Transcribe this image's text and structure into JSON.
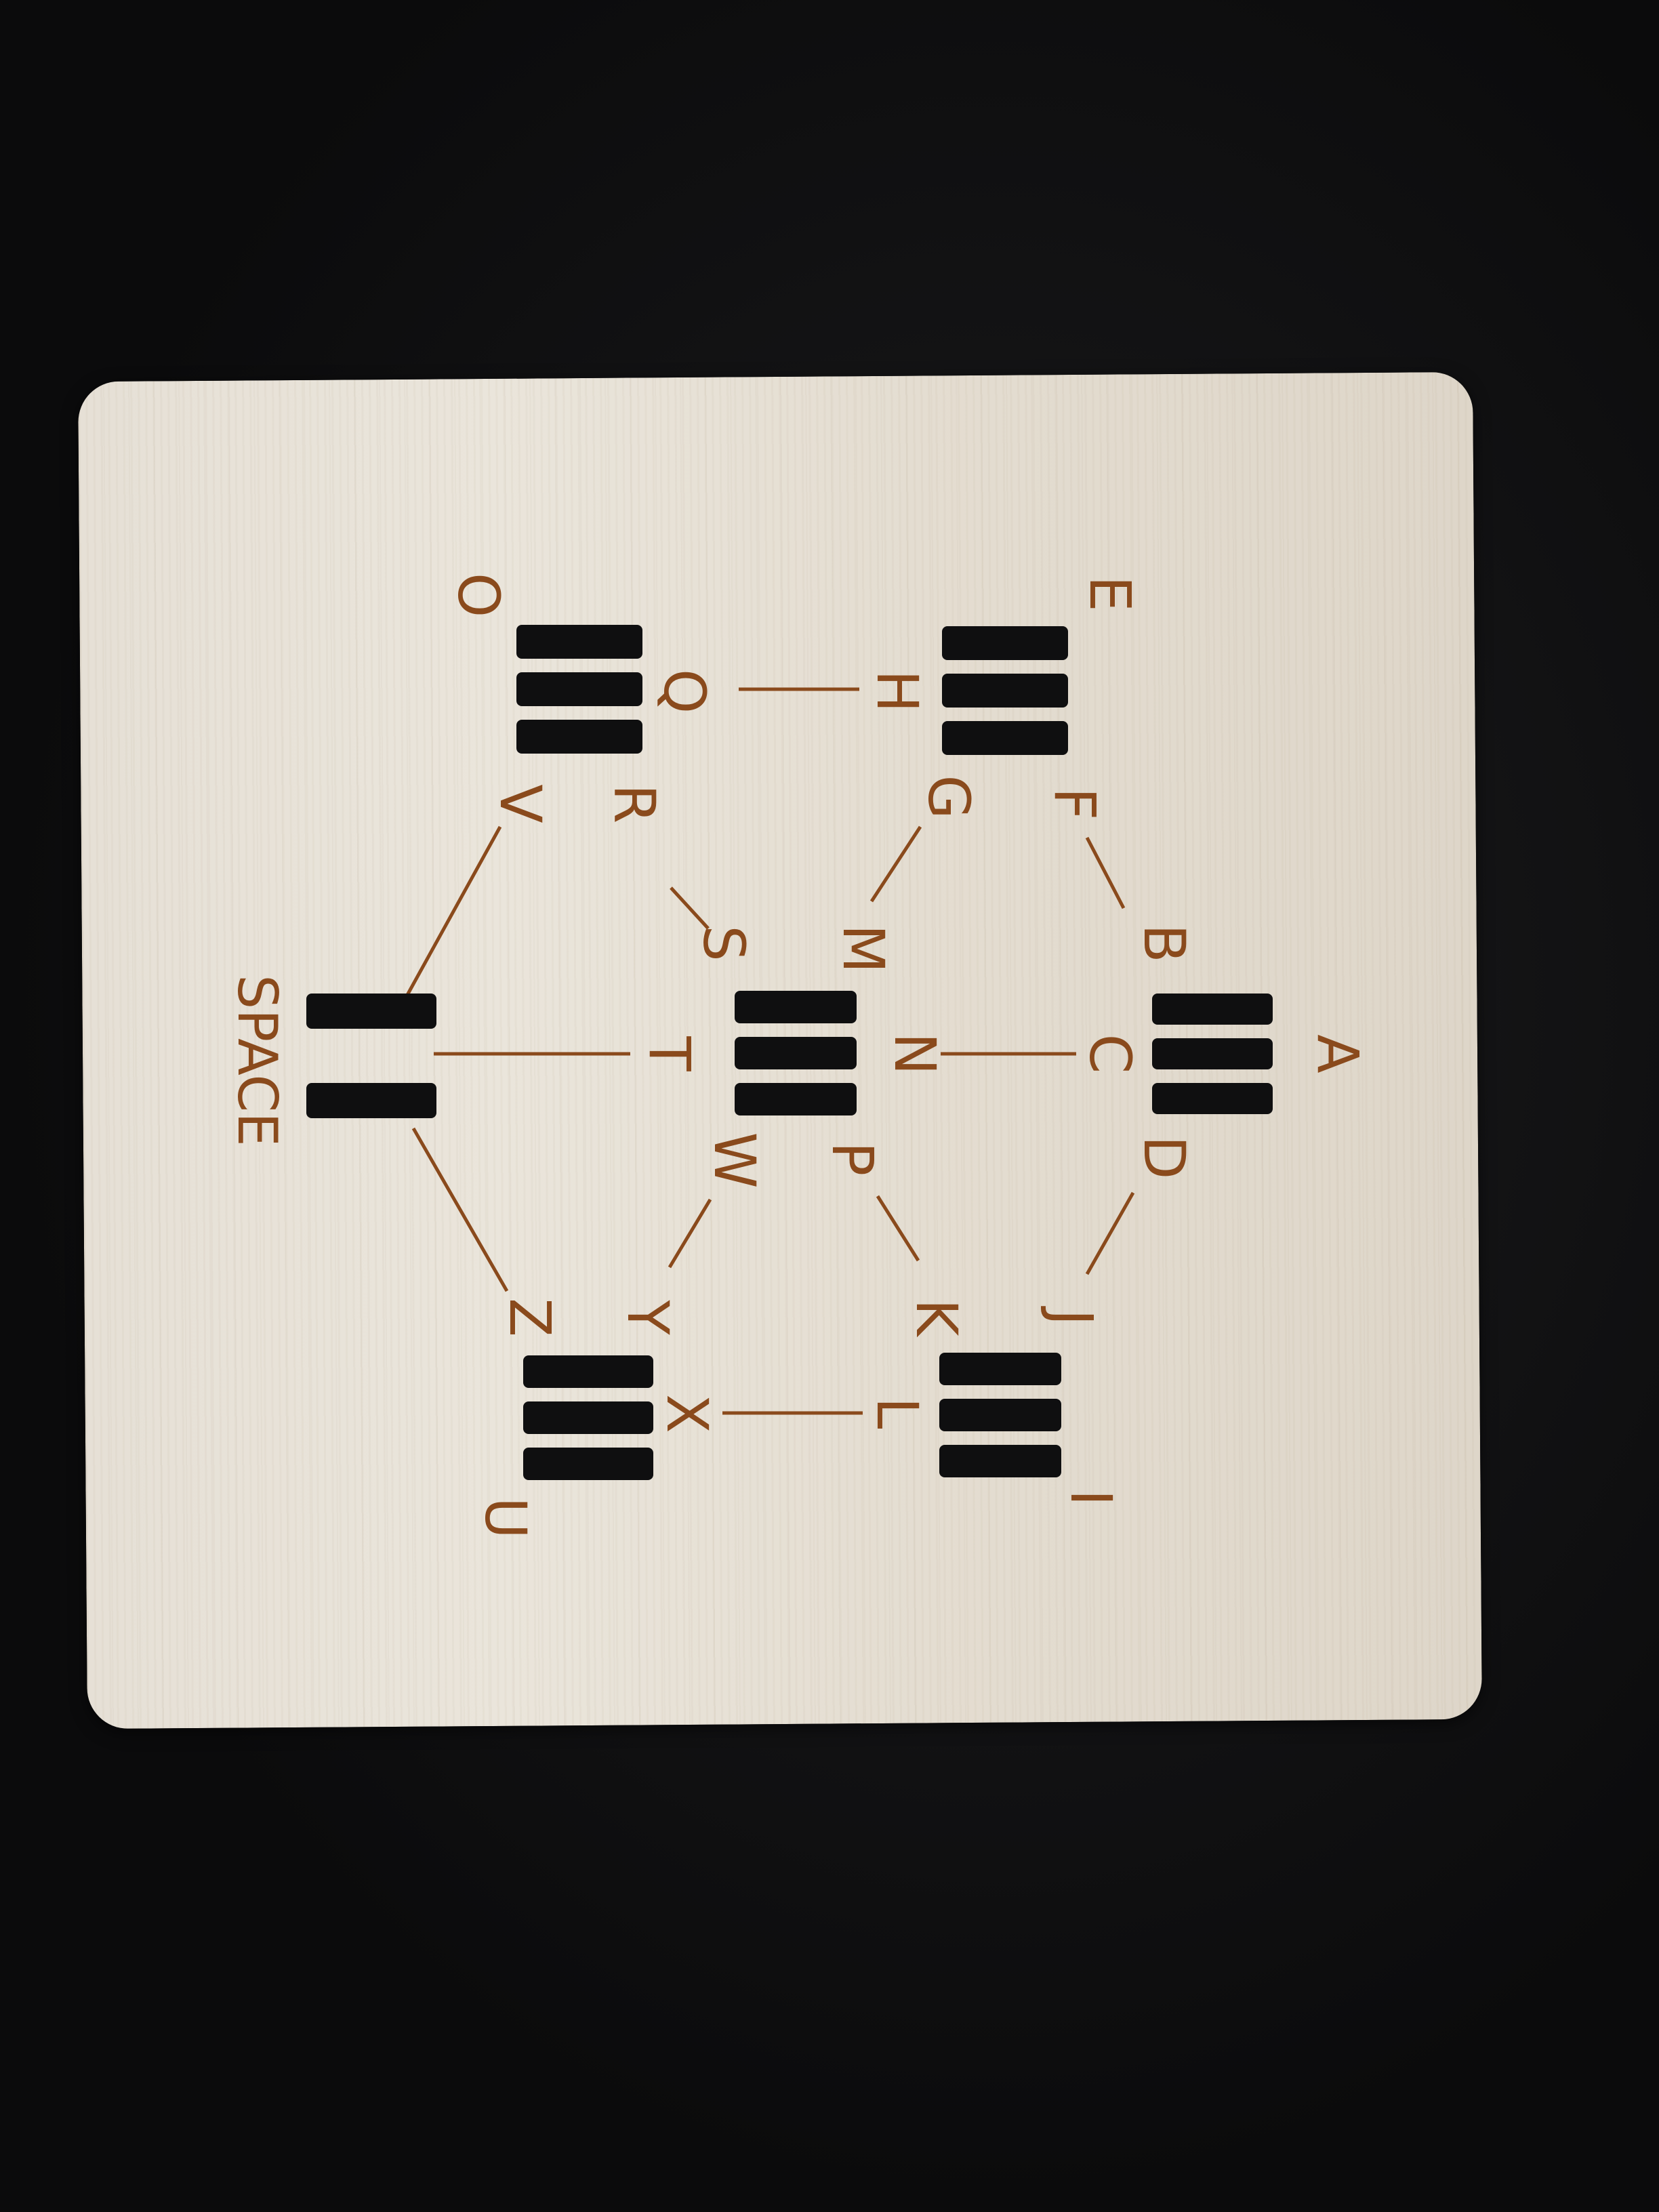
{
  "board": {
    "letters": {
      "A": "A",
      "B": "B",
      "C": "C",
      "D": "D",
      "E": "E",
      "F": "F",
      "G": "G",
      "H": "H",
      "I": "I",
      "J": "J",
      "K": "K",
      "L": "L",
      "M": "M",
      "N": "N",
      "P": "P",
      "O": "O",
      "Q": "Q",
      "R": "R",
      "V": "V",
      "S": "S",
      "T": "T",
      "W": "W",
      "U": "U",
      "X": "X",
      "Y": "Y",
      "Z": "Z"
    },
    "space_label": "SPACE",
    "colors": {
      "wood": "#e6e0d6",
      "engraving": "#8a4a1c",
      "slot": "#0f0f10",
      "background": "#0d0d0e"
    }
  }
}
